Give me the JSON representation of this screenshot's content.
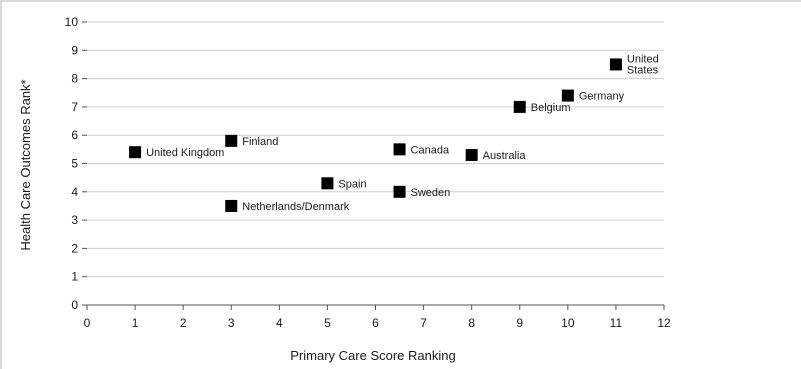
{
  "chart_data": {
    "type": "scatter",
    "xlabel": "Primary Care Score Ranking",
    "ylabel": "Health Care Outcomes Rank*",
    "xlim": [
      0,
      12
    ],
    "ylim": [
      0,
      10
    ],
    "x_ticks": [
      0,
      1,
      2,
      3,
      4,
      5,
      6,
      7,
      8,
      9,
      10,
      11,
      12
    ],
    "y_ticks": [
      0,
      1,
      2,
      3,
      4,
      5,
      6,
      7,
      8,
      9,
      10
    ],
    "grid": "horizontal",
    "marker": "square",
    "marker_color": "#000000",
    "points": [
      {
        "label": "United Kingdom",
        "x": 1,
        "y": 5.4
      },
      {
        "label": "Finland",
        "x": 3,
        "y": 5.8
      },
      {
        "label": "Netherlands/Denmark",
        "x": 3,
        "y": 3.5
      },
      {
        "label": "Spain",
        "x": 5,
        "y": 4.3
      },
      {
        "label": "Canada",
        "x": 6.5,
        "y": 5.5
      },
      {
        "label": "Sweden",
        "x": 6.5,
        "y": 4.0
      },
      {
        "label": "Australia",
        "x": 8,
        "y": 5.3
      },
      {
        "label": "Belgium",
        "x": 9,
        "y": 7.0
      },
      {
        "label": "Germany",
        "x": 10,
        "y": 7.4
      },
      {
        "label": "United States",
        "x": 11,
        "y": 8.5,
        "label_lines": [
          "United",
          "States"
        ]
      }
    ]
  }
}
